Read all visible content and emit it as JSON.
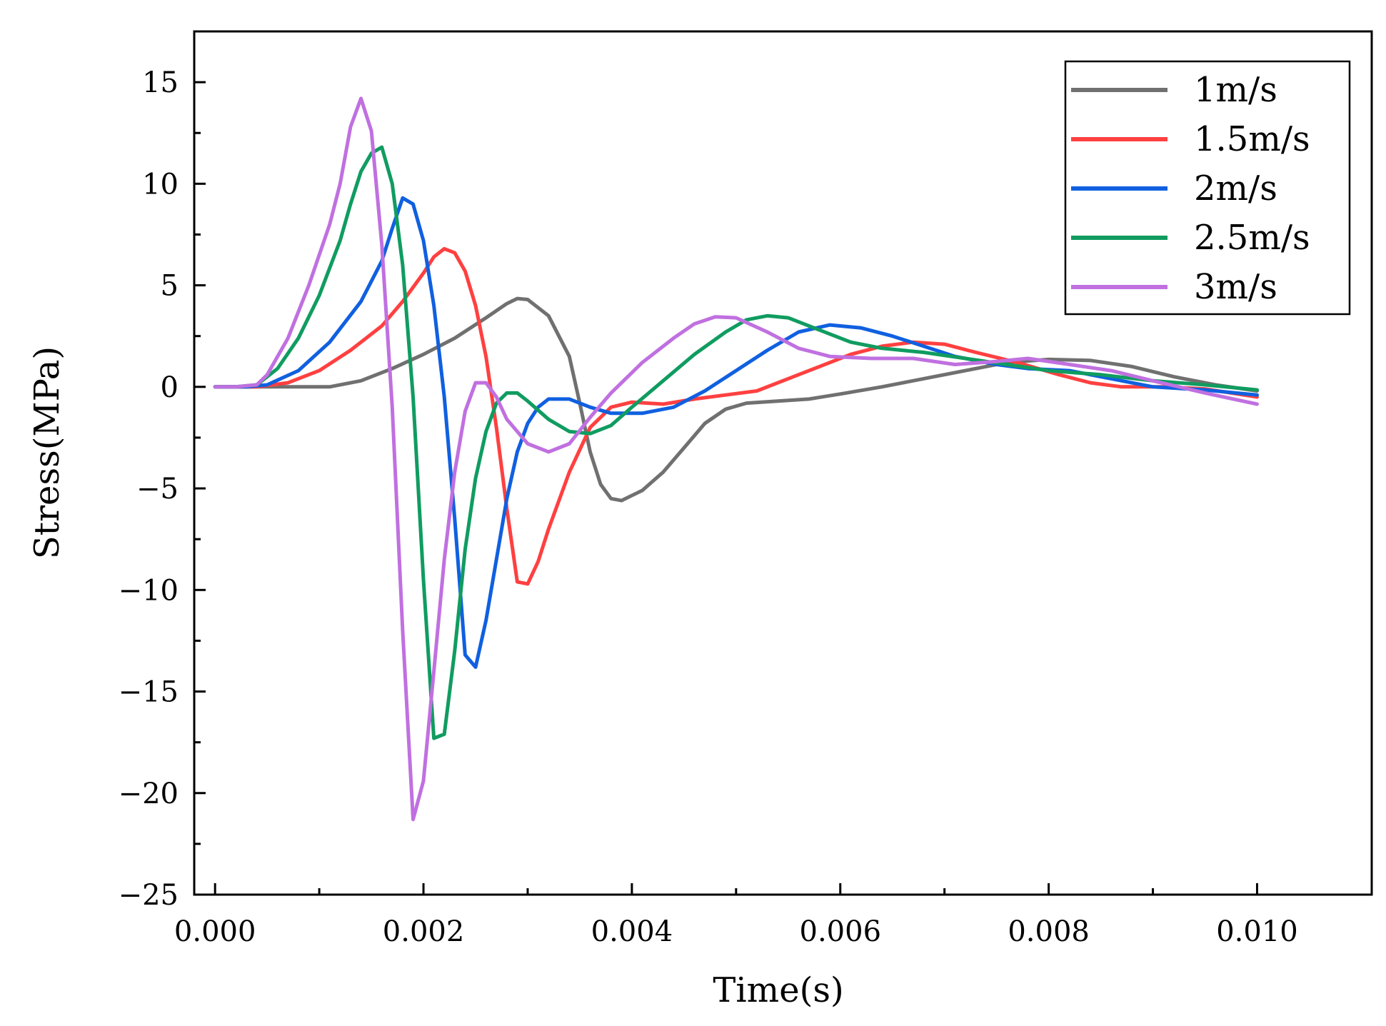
{
  "chart_data": {
    "type": "line",
    "title": "",
    "xlabel": "Time(s)",
    "ylabel": "Stress(MPa)",
    "xlim": [
      -0.0002,
      0.0111
    ],
    "ylim": [
      -25,
      17.5
    ],
    "xticks": [
      0.0,
      0.002,
      0.004,
      0.006,
      0.008,
      0.01
    ],
    "xtick_labels": [
      "0.000",
      "0.002",
      "0.004",
      "0.006",
      "0.008",
      "0.010"
    ],
    "yticks": [
      -25,
      -20,
      -15,
      -10,
      -5,
      0,
      5,
      10,
      15
    ],
    "ytick_labels": [
      "−25",
      "−20",
      "−15",
      "−10",
      "−5",
      "0",
      "5",
      "10",
      "15"
    ],
    "grid": false,
    "legend_position": "top-right",
    "series": [
      {
        "name": "1m/s",
        "color": "#707070",
        "points": [
          [
            0,
            0
          ],
          [
            0.0006,
            0
          ],
          [
            0.0011,
            0
          ],
          [
            0.0014,
            0.3
          ],
          [
            0.0017,
            0.9
          ],
          [
            0.002,
            1.6
          ],
          [
            0.0023,
            2.4
          ],
          [
            0.0026,
            3.4
          ],
          [
            0.0028,
            4.1
          ],
          [
            0.0029,
            4.35
          ],
          [
            0.003,
            4.3
          ],
          [
            0.0032,
            3.5
          ],
          [
            0.0034,
            1.5
          ],
          [
            0.0035,
            -0.8
          ],
          [
            0.0036,
            -3.2
          ],
          [
            0.0037,
            -4.8
          ],
          [
            0.0038,
            -5.5
          ],
          [
            0.0039,
            -5.6
          ],
          [
            0.0041,
            -5.1
          ],
          [
            0.0043,
            -4.2
          ],
          [
            0.0045,
            -3.0
          ],
          [
            0.0047,
            -1.8
          ],
          [
            0.0049,
            -1.1
          ],
          [
            0.0051,
            -0.8
          ],
          [
            0.0054,
            -0.7
          ],
          [
            0.0057,
            -0.6
          ],
          [
            0.006,
            -0.35
          ],
          [
            0.0064,
            0
          ],
          [
            0.0068,
            0.4
          ],
          [
            0.0072,
            0.8
          ],
          [
            0.0076,
            1.2
          ],
          [
            0.008,
            1.35
          ],
          [
            0.0084,
            1.3
          ],
          [
            0.0088,
            1.0
          ],
          [
            0.0092,
            0.5
          ],
          [
            0.0096,
            0.1
          ],
          [
            0.01,
            -0.2
          ]
        ]
      },
      {
        "name": "1.5m/s",
        "color": "#ff4040",
        "points": [
          [
            0,
            0
          ],
          [
            0.0004,
            0
          ],
          [
            0.0007,
            0.2
          ],
          [
            0.001,
            0.8
          ],
          [
            0.0013,
            1.8
          ],
          [
            0.0016,
            3.0
          ],
          [
            0.0018,
            4.2
          ],
          [
            0.002,
            5.6
          ],
          [
            0.0021,
            6.4
          ],
          [
            0.0022,
            6.8
          ],
          [
            0.0023,
            6.6
          ],
          [
            0.0024,
            5.7
          ],
          [
            0.0025,
            4.0
          ],
          [
            0.0026,
            1.5
          ],
          [
            0.0027,
            -2.0
          ],
          [
            0.0028,
            -6.0
          ],
          [
            0.0029,
            -9.6
          ],
          [
            0.003,
            -9.7
          ],
          [
            0.0031,
            -8.6
          ],
          [
            0.0032,
            -7.0
          ],
          [
            0.0034,
            -4.2
          ],
          [
            0.0036,
            -2.0
          ],
          [
            0.0038,
            -1.0
          ],
          [
            0.004,
            -0.75
          ],
          [
            0.0043,
            -0.85
          ],
          [
            0.0046,
            -0.6
          ],
          [
            0.0049,
            -0.4
          ],
          [
            0.0052,
            -0.2
          ],
          [
            0.0055,
            0.4
          ],
          [
            0.0058,
            1.0
          ],
          [
            0.0061,
            1.6
          ],
          [
            0.0064,
            2.0
          ],
          [
            0.0067,
            2.2
          ],
          [
            0.007,
            2.1
          ],
          [
            0.0073,
            1.7
          ],
          [
            0.0077,
            1.2
          ],
          [
            0.0081,
            0.6
          ],
          [
            0.0084,
            0.2
          ],
          [
            0.0087,
            0
          ],
          [
            0.0091,
            0
          ],
          [
            0.0095,
            -0.1
          ],
          [
            0.01,
            -0.5
          ]
        ]
      },
      {
        "name": "2m/s",
        "color": "#1060e0",
        "points": [
          [
            0,
            0
          ],
          [
            0.0003,
            0
          ],
          [
            0.0005,
            0.1
          ],
          [
            0.0008,
            0.8
          ],
          [
            0.0011,
            2.2
          ],
          [
            0.0014,
            4.2
          ],
          [
            0.0016,
            6.2
          ],
          [
            0.0017,
            7.8
          ],
          [
            0.0018,
            9.3
          ],
          [
            0.0019,
            9.0
          ],
          [
            0.002,
            7.2
          ],
          [
            0.0021,
            4.0
          ],
          [
            0.0022,
            -0.5
          ],
          [
            0.0023,
            -6.5
          ],
          [
            0.0024,
            -13.2
          ],
          [
            0.0025,
            -13.8
          ],
          [
            0.0026,
            -11.5
          ],
          [
            0.0027,
            -8.5
          ],
          [
            0.0028,
            -5.5
          ],
          [
            0.0029,
            -3.2
          ],
          [
            0.003,
            -1.8
          ],
          [
            0.0031,
            -1.0
          ],
          [
            0.0032,
            -0.6
          ],
          [
            0.0034,
            -0.6
          ],
          [
            0.0036,
            -1.0
          ],
          [
            0.0038,
            -1.3
          ],
          [
            0.0041,
            -1.3
          ],
          [
            0.0044,
            -1.0
          ],
          [
            0.0047,
            -0.2
          ],
          [
            0.005,
            0.8
          ],
          [
            0.0053,
            1.8
          ],
          [
            0.0056,
            2.7
          ],
          [
            0.0059,
            3.05
          ],
          [
            0.0062,
            2.9
          ],
          [
            0.0065,
            2.5
          ],
          [
            0.0068,
            2.0
          ],
          [
            0.0071,
            1.5
          ],
          [
            0.0075,
            1.1
          ],
          [
            0.0078,
            0.9
          ],
          [
            0.0082,
            0.8
          ],
          [
            0.0086,
            0.4
          ],
          [
            0.009,
            0
          ],
          [
            0.0095,
            -0.15
          ],
          [
            0.01,
            -0.4
          ]
        ]
      },
      {
        "name": "2.5m/s",
        "color": "#109c60",
        "points": [
          [
            0,
            0
          ],
          [
            0.0002,
            0
          ],
          [
            0.0004,
            0.1
          ],
          [
            0.0006,
            0.9
          ],
          [
            0.0008,
            2.4
          ],
          [
            0.001,
            4.5
          ],
          [
            0.0012,
            7.2
          ],
          [
            0.0013,
            9.0
          ],
          [
            0.0014,
            10.6
          ],
          [
            0.0015,
            11.5
          ],
          [
            0.0016,
            11.8
          ],
          [
            0.0017,
            10.0
          ],
          [
            0.0018,
            6.0
          ],
          [
            0.0019,
            -0.5
          ],
          [
            0.002,
            -9.5
          ],
          [
            0.0021,
            -17.3
          ],
          [
            0.0022,
            -17.1
          ],
          [
            0.0023,
            -13.0
          ],
          [
            0.0024,
            -8.0
          ],
          [
            0.0025,
            -4.5
          ],
          [
            0.0026,
            -2.2
          ],
          [
            0.0027,
            -0.8
          ],
          [
            0.0028,
            -0.3
          ],
          [
            0.0029,
            -0.3
          ],
          [
            0.003,
            -0.7
          ],
          [
            0.0032,
            -1.6
          ],
          [
            0.0034,
            -2.2
          ],
          [
            0.0036,
            -2.3
          ],
          [
            0.0038,
            -1.9
          ],
          [
            0.004,
            -1.0
          ],
          [
            0.0043,
            0.3
          ],
          [
            0.0046,
            1.6
          ],
          [
            0.0049,
            2.7
          ],
          [
            0.0051,
            3.3
          ],
          [
            0.0053,
            3.5
          ],
          [
            0.0055,
            3.4
          ],
          [
            0.0058,
            2.8
          ],
          [
            0.0061,
            2.2
          ],
          [
            0.0064,
            1.9
          ],
          [
            0.0068,
            1.7
          ],
          [
            0.0072,
            1.4
          ],
          [
            0.0076,
            1.1
          ],
          [
            0.008,
            0.8
          ],
          [
            0.0085,
            0.6
          ],
          [
            0.009,
            0.3
          ],
          [
            0.0095,
            0.1
          ],
          [
            0.01,
            -0.15
          ]
        ]
      },
      {
        "name": "3m/s",
        "color": "#c070e0",
        "points": [
          [
            0,
            0
          ],
          [
            0.0002,
            0
          ],
          [
            0.0004,
            0.1
          ],
          [
            0.0005,
            0.6
          ],
          [
            0.0007,
            2.4
          ],
          [
            0.0009,
            5.0
          ],
          [
            0.0011,
            8.0
          ],
          [
            0.0012,
            10.0
          ],
          [
            0.0013,
            12.8
          ],
          [
            0.0014,
            14.2
          ],
          [
            0.0015,
            12.6
          ],
          [
            0.0016,
            7.0
          ],
          [
            0.0017,
            -1.0
          ],
          [
            0.0018,
            -12.0
          ],
          [
            0.0019,
            -21.3
          ],
          [
            0.002,
            -19.4
          ],
          [
            0.0021,
            -14.0
          ],
          [
            0.0022,
            -8.5
          ],
          [
            0.0023,
            -4.2
          ],
          [
            0.0024,
            -1.2
          ],
          [
            0.0025,
            0.2
          ],
          [
            0.0026,
            0.2
          ],
          [
            0.0027,
            -0.5
          ],
          [
            0.0028,
            -1.6
          ],
          [
            0.003,
            -2.8
          ],
          [
            0.0032,
            -3.2
          ],
          [
            0.0034,
            -2.8
          ],
          [
            0.0036,
            -1.5
          ],
          [
            0.0038,
            -0.3
          ],
          [
            0.0041,
            1.2
          ],
          [
            0.0044,
            2.4
          ],
          [
            0.0046,
            3.1
          ],
          [
            0.0048,
            3.45
          ],
          [
            0.005,
            3.4
          ],
          [
            0.0053,
            2.7
          ],
          [
            0.0056,
            1.9
          ],
          [
            0.0059,
            1.5
          ],
          [
            0.0063,
            1.4
          ],
          [
            0.0067,
            1.4
          ],
          [
            0.0071,
            1.1
          ],
          [
            0.0075,
            1.25
          ],
          [
            0.0078,
            1.4
          ],
          [
            0.0082,
            1.1
          ],
          [
            0.0086,
            0.8
          ],
          [
            0.009,
            0.3
          ],
          [
            0.0095,
            -0.3
          ],
          [
            0.01,
            -0.85
          ]
        ]
      }
    ]
  }
}
